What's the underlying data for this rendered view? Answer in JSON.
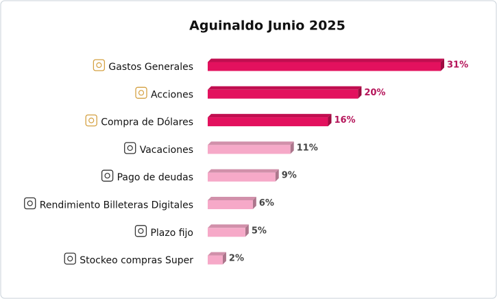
{
  "chart_data": {
    "type": "bar",
    "orientation": "horizontal",
    "title": "Aguinaldo Junio 2025",
    "categories": [
      "Gastos Generales",
      "Acciones",
      "Compra de Dólares",
      "Vacaciones",
      "Pago de deudas",
      "Rendimiento Billeteras Digitales",
      "Plazo fijo",
      "Stockeo compras Super"
    ],
    "values": [
      31,
      20,
      16,
      11,
      9,
      6,
      5,
      2
    ],
    "value_labels": [
      "31%",
      "20%",
      "16%",
      "11%",
      "9%",
      "6%",
      "5%",
      "2%"
    ],
    "colors": [
      "#e3115e",
      "#e3115e",
      "#e3115e",
      "#f6a9c8",
      "#f6a9c8",
      "#f6a9c8",
      "#f6a9c8",
      "#f6a9c8"
    ],
    "value_label_colors": [
      "#b5155a",
      "#b5155a",
      "#b5155a",
      "#444444",
      "#444444",
      "#444444",
      "#444444",
      "#444444"
    ]
  }
}
